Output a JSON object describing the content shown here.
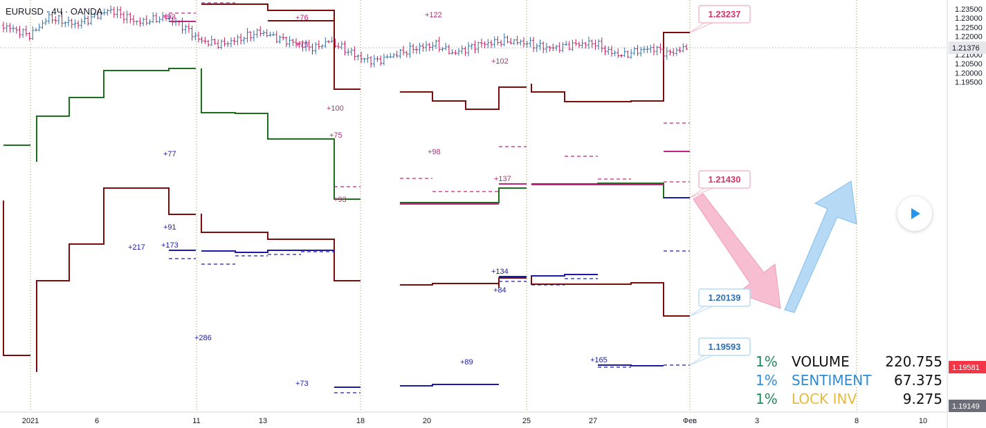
{
  "symbol_title": "EURUSD · 4Ч · OANDA",
  "colors": {
    "bull_candle": "#2e6da4",
    "bear_candle": "#c2185b",
    "maroon": "#7b0c0c",
    "green": "#1b6e1b",
    "magenta": "#c0257e",
    "navy": "#1a1aa6",
    "pink_arrow": "#f5b3c8",
    "blue_arrow": "#a9d4f5"
  },
  "chart_data": {
    "type": "candlestick",
    "price_range": [
      1.188,
      1.2365
    ],
    "y_ticks": [
      "1.23500",
      "1.23000",
      "1.22500",
      "1.22000",
      "1.21500",
      "1.21000",
      "1.20500",
      "1.20000",
      "1.19500"
    ],
    "x_ticks": [
      "2021",
      "6",
      "11",
      "13",
      "18",
      "20",
      "25",
      "27",
      "Фев",
      "3",
      "8",
      "10"
    ],
    "last_price": 1.21376,
    "price_tags": [
      {
        "text": "1.21376",
        "kind": "current"
      },
      {
        "text": "1.19581",
        "kind": "red"
      },
      {
        "text": "1.19149",
        "kind": "gray"
      }
    ],
    "callouts": [
      {
        "text": "1.23237",
        "kind": "pink"
      },
      {
        "text": "1.21430",
        "kind": "pink"
      },
      {
        "text": "1.20139",
        "kind": "blue"
      },
      {
        "text": "1.19593",
        "kind": "blue"
      }
    ],
    "annotations": [
      {
        "text": "+93",
        "color": "magenta"
      },
      {
        "text": "+76",
        "color": "magenta"
      },
      {
        "text": "+75",
        "color": "magenta"
      },
      {
        "text": "+122",
        "color": "magenta"
      },
      {
        "text": "+102",
        "color": "magenta"
      },
      {
        "text": "+100",
        "color": "magenta"
      },
      {
        "text": "+75",
        "color": "magenta"
      },
      {
        "text": "+98",
        "color": "magenta"
      },
      {
        "text": "+137",
        "color": "magenta"
      },
      {
        "text": "+93",
        "color": "magenta"
      },
      {
        "text": "+77",
        "color": "navy"
      },
      {
        "text": "+91",
        "color": "navy"
      },
      {
        "text": "+217",
        "color": "navy"
      },
      {
        "text": "+173",
        "color": "navy"
      },
      {
        "text": "+134",
        "color": "navy"
      },
      {
        "text": "+84",
        "color": "navy"
      },
      {
        "text": "+286",
        "color": "navy"
      },
      {
        "text": "+89",
        "color": "navy"
      },
      {
        "text": "+165",
        "color": "navy"
      },
      {
        "text": "+73",
        "color": "navy"
      }
    ]
  },
  "stats": [
    {
      "pct": "1%",
      "label": "VOLUME",
      "value": "220.755",
      "pct_color": "#1b8a5a",
      "label_color": "#111111"
    },
    {
      "pct": "1%",
      "label": "SENTIMENT",
      "value": "67.375",
      "pct_color": "#2e8bd0",
      "label_color": "#2e8bd0"
    },
    {
      "pct": "1%",
      "label": "LOCK INV",
      "value": "9.275",
      "pct_color": "#1b8a5a",
      "label_color": "#e8b93c"
    }
  ]
}
